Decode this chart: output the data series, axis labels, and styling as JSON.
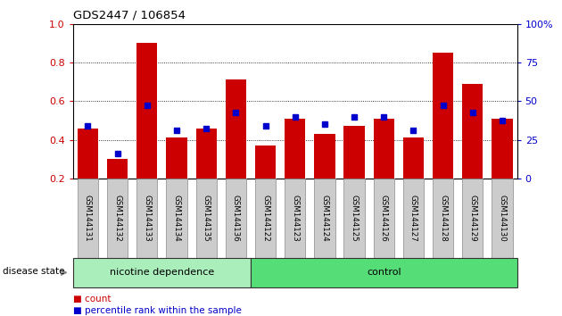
{
  "title": "GDS2447 / 106854",
  "categories": [
    "GSM144131",
    "GSM144132",
    "GSM144133",
    "GSM144134",
    "GSM144135",
    "GSM144136",
    "GSM144122",
    "GSM144123",
    "GSM144124",
    "GSM144125",
    "GSM144126",
    "GSM144127",
    "GSM144128",
    "GSM144129",
    "GSM144130"
  ],
  "red_bars": [
    0.46,
    0.3,
    0.9,
    0.41,
    0.46,
    0.71,
    0.37,
    0.51,
    0.43,
    0.47,
    0.51,
    0.41,
    0.85,
    0.69,
    0.51
  ],
  "blue_squares": [
    0.47,
    0.33,
    0.58,
    0.45,
    0.46,
    0.54,
    0.47,
    0.52,
    0.48,
    0.52,
    0.52,
    0.45,
    0.58,
    0.54,
    0.5
  ],
  "ylim_left": [
    0.2,
    1.0
  ],
  "ylim_right": [
    0,
    100
  ],
  "yticks_left": [
    0.2,
    0.4,
    0.6,
    0.8,
    1.0
  ],
  "yticks_right": [
    0,
    25,
    50,
    75,
    100
  ],
  "group1_label": "nicotine dependence",
  "group2_label": "control",
  "group1_count": 6,
  "group2_count": 9,
  "legend_count": "count",
  "legend_percentile": "percentile rank within the sample",
  "disease_state_label": "disease state",
  "red_color": "#CC0000",
  "blue_color": "#0000CC",
  "group1_bg": "#AAEEBB",
  "group2_bg": "#55DD77",
  "bar_bg": "#CCCCCC",
  "bar_width": 0.7
}
